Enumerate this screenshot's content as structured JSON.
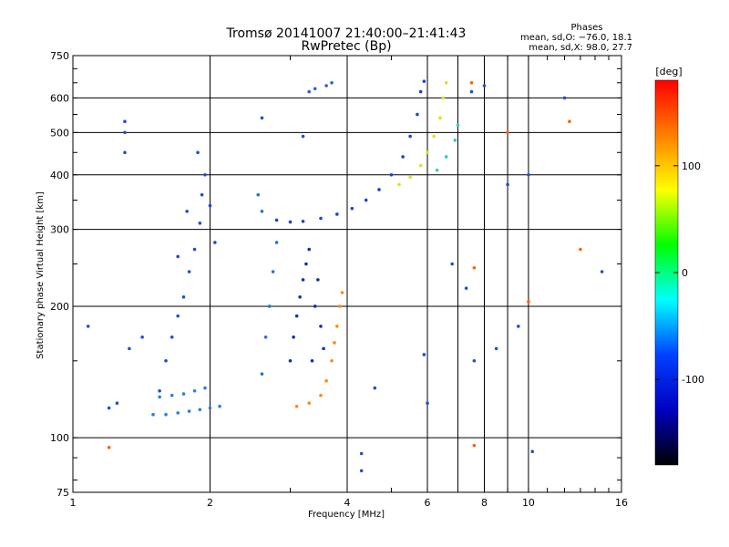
{
  "chart_data": {
    "type": "scatter",
    "title": "Tromsø 20141007 21:40:00–21:41:43",
    "subtitle": "RwPretec (Bp)",
    "xlabel": "Frequency [MHz]",
    "ylabel": "Stationary phase Virtual Height [km]",
    "x_scale": "log",
    "y_scale": "log",
    "xlim": [
      1,
      16
    ],
    "ylim": [
      75,
      750
    ],
    "x_ticks": [
      1,
      2,
      4,
      6,
      8,
      10,
      16
    ],
    "x_minor_lines": [
      7,
      9
    ],
    "y_ticks": [
      75,
      100,
      200,
      300,
      400,
      500,
      600,
      750
    ],
    "grid": true,
    "annotation": {
      "heading": "Phases",
      "line1": "mean, sd,O: −76.0, 18.1",
      "line2": "mean, sd,X:  98.0, 27.7"
    },
    "colorbar": {
      "label": "[deg]",
      "range": [
        -180,
        180
      ],
      "ticks": [
        100,
        0,
        -100
      ],
      "colors": [
        "#ff0000",
        "#ff8000",
        "#ffff00",
        "#00ff00",
        "#00ffff",
        "#0040ff",
        "#0000c0",
        "#000000"
      ]
    },
    "series": [
      {
        "color": "#1a4fd8",
        "points": [
          [
            1.55,
            128
          ],
          [
            1.6,
            150
          ],
          [
            1.65,
            170
          ],
          [
            1.7,
            190
          ],
          [
            1.75,
            210
          ],
          [
            1.8,
            240
          ],
          [
            1.85,
            270
          ],
          [
            1.9,
            310
          ],
          [
            1.92,
            360
          ],
          [
            1.95,
            400
          ],
          [
            2.0,
            340
          ],
          [
            2.05,
            280
          ],
          [
            1.78,
            330
          ],
          [
            1.88,
            450
          ],
          [
            1.7,
            260
          ]
        ]
      },
      {
        "color": "#2a7fe8",
        "points": [
          [
            1.5,
            113
          ],
          [
            1.6,
            113
          ],
          [
            1.7,
            114
          ],
          [
            1.8,
            115
          ],
          [
            1.9,
            116
          ],
          [
            2.0,
            117
          ],
          [
            2.1,
            118
          ],
          [
            1.55,
            124
          ],
          [
            1.65,
            125
          ],
          [
            1.75,
            126
          ],
          [
            1.85,
            128
          ],
          [
            1.95,
            130
          ]
        ]
      },
      {
        "color": "#1030b0",
        "points": [
          [
            3.0,
            150
          ],
          [
            3.05,
            170
          ],
          [
            3.1,
            190
          ],
          [
            3.15,
            210
          ],
          [
            3.2,
            230
          ],
          [
            3.25,
            250
          ],
          [
            3.3,
            270
          ],
          [
            3.4,
            200
          ],
          [
            3.45,
            230
          ],
          [
            3.5,
            180
          ],
          [
            3.55,
            160
          ],
          [
            3.35,
            150
          ]
        ]
      },
      {
        "color": "#2a6fe0",
        "points": [
          [
            2.6,
            140
          ],
          [
            2.65,
            170
          ],
          [
            2.7,
            200
          ],
          [
            2.75,
            240
          ],
          [
            2.8,
            280
          ],
          [
            2.6,
            330
          ],
          [
            2.55,
            360
          ]
        ]
      },
      {
        "color": "#ff8a10",
        "points": [
          [
            3.1,
            118
          ],
          [
            3.3,
            120
          ],
          [
            3.5,
            125
          ],
          [
            3.6,
            135
          ],
          [
            3.7,
            150
          ],
          [
            3.75,
            165
          ],
          [
            3.8,
            180
          ],
          [
            3.85,
            200
          ],
          [
            3.9,
            215
          ]
        ]
      },
      {
        "color": "#1848d0",
        "points": [
          [
            2.8,
            315
          ],
          [
            3.0,
            312
          ],
          [
            3.2,
            313
          ],
          [
            3.5,
            318
          ],
          [
            3.8,
            325
          ],
          [
            4.1,
            335
          ],
          [
            4.4,
            350
          ],
          [
            4.7,
            370
          ],
          [
            5.0,
            400
          ],
          [
            5.3,
            440
          ],
          [
            5.5,
            490
          ],
          [
            5.7,
            550
          ],
          [
            5.8,
            620
          ],
          [
            5.9,
            655
          ]
        ]
      },
      {
        "color": "#e0e020",
        "points": [
          [
            5.2,
            380
          ],
          [
            5.5,
            395
          ],
          [
            5.8,
            420
          ],
          [
            6.0,
            450
          ],
          [
            6.2,
            490
          ],
          [
            6.4,
            540
          ],
          [
            6.5,
            600
          ],
          [
            6.6,
            650
          ]
        ]
      },
      {
        "color": "#2ad0c0",
        "points": [
          [
            6.3,
            410
          ],
          [
            6.6,
            440
          ],
          [
            6.9,
            480
          ],
          [
            7.0,
            520
          ]
        ]
      },
      {
        "color": "#3060e0",
        "points": [
          [
            3.3,
            620
          ],
          [
            3.4,
            630
          ],
          [
            3.6,
            640
          ],
          [
            3.7,
            650
          ]
        ]
      },
      {
        "color": "#2050d0",
        "points": [
          [
            1.3,
            450
          ],
          [
            1.3,
            500
          ],
          [
            1.3,
            530
          ],
          [
            2.6,
            540
          ],
          [
            3.2,
            490
          ],
          [
            7.5,
            620
          ],
          [
            8.0,
            640
          ],
          [
            9.0,
            380
          ],
          [
            10.0,
            400
          ],
          [
            12.0,
            600
          ],
          [
            14.5,
            240
          ],
          [
            6.8,
            250
          ],
          [
            7.3,
            220
          ],
          [
            7.6,
            150
          ],
          [
            8.5,
            160
          ],
          [
            9.5,
            180
          ],
          [
            4.3,
            92
          ],
          [
            4.3,
            84
          ],
          [
            10.2,
            93
          ],
          [
            1.08,
            180
          ],
          [
            1.2,
            117
          ],
          [
            1.25,
            120
          ],
          [
            1.33,
            160
          ],
          [
            1.42,
            170
          ],
          [
            5.9,
            155
          ],
          [
            6.0,
            120
          ],
          [
            4.6,
            130
          ]
        ]
      },
      {
        "color": "#ff6010",
        "points": [
          [
            7.5,
            650
          ],
          [
            9.0,
            500
          ],
          [
            10.0,
            205
          ],
          [
            12.3,
            530
          ],
          [
            13.0,
            270
          ],
          [
            7.6,
            96
          ],
          [
            1.2,
            95
          ],
          [
            7.6,
            245
          ]
        ]
      }
    ]
  }
}
